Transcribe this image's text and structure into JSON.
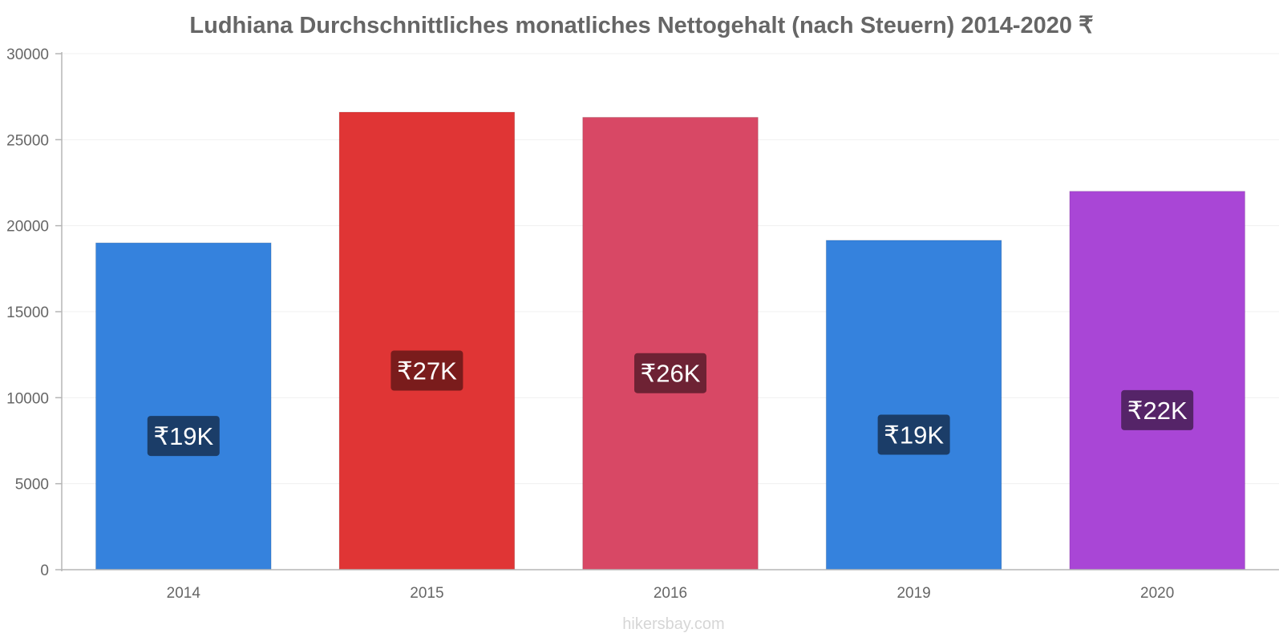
{
  "chart_data": {
    "type": "bar",
    "title": "Ludhiana Durchschnittliches monatliches Nettogehalt (nach Steuern) 2014-2020 ₹",
    "xlabel": "",
    "ylabel": "",
    "ylim": [
      0,
      30000
    ],
    "yticks": [
      0,
      5000,
      10000,
      15000,
      20000,
      25000,
      30000
    ],
    "grid": true,
    "categories": [
      "2014",
      "2015",
      "2016",
      "2019",
      "2020"
    ],
    "values": [
      19000,
      26600,
      26300,
      19150,
      22000
    ],
    "labels": [
      "₹19K",
      "₹27K",
      "₹26K",
      "₹19K",
      "₹22K"
    ],
    "colors": [
      "#3582dd",
      "#e03535",
      "#d84865",
      "#3582dd",
      "#a946d6"
    ],
    "label_colors": [
      "#1b3d68",
      "#7a1c1c",
      "#6e2234",
      "#1b3d68",
      "#552468"
    ]
  },
  "watermark": "hikersbay.com"
}
